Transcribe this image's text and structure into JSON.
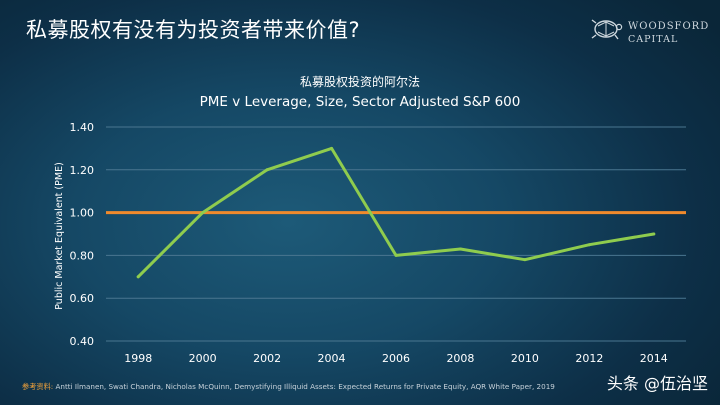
{
  "slide": {
    "title": "私募股权有没有为投资者带来价值?"
  },
  "logo": {
    "line1": "WOODSFORD",
    "line2": "CAPITAL",
    "icon": "turtle-icon"
  },
  "chart_data": {
    "type": "line",
    "title": "私募股权投资的阿尔法",
    "subtitle": "PME v Leverage, Size, Sector Adjusted S&P 600",
    "ylabel": "Public Market Equivalent (PME)",
    "xlabel": "",
    "x_ticks": [
      "1998",
      "2000",
      "2002",
      "2004",
      "2006",
      "2008",
      "2010",
      "2012",
      "2014"
    ],
    "y_ticks": [
      "0.40",
      "0.60",
      "0.80",
      "1.00",
      "1.20",
      "1.40"
    ],
    "ylim": [
      0.4,
      1.4
    ],
    "xlim": [
      1997,
      2015
    ],
    "grid": "horizontal",
    "series": [
      {
        "x": [
          1998,
          2000,
          2002,
          2004,
          2006,
          2008,
          2010,
          2012,
          2014
        ],
        "values": [
          0.7,
          1.0,
          1.2,
          1.3,
          0.8,
          0.83,
          0.78,
          0.85,
          0.9
        ],
        "color": "#8fcc4e"
      }
    ],
    "reference_line": {
      "value": 1.0,
      "color": "#f08a2c"
    }
  },
  "footnote": {
    "label": "参考资料:",
    "text": " Antti Ilmanen,  Swati Chandra, Nicholas McQuinn, Demystifying Illiquid Assets: Expected  Returns for Private Equity, AQR White Paper, 2019"
  },
  "watermark": {
    "text": "头条 @伍治坚"
  },
  "colors": {
    "grid": "#4a7690",
    "axis_text": "#ffffff"
  }
}
